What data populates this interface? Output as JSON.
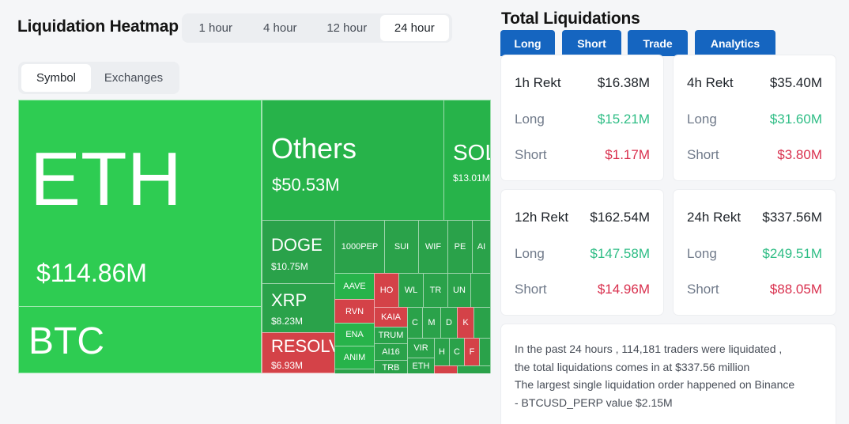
{
  "heatmap": {
    "title": "Liquidation Heatmap",
    "time_tabs": [
      "1 hour",
      "4 hour",
      "12 hour",
      "24 hour"
    ],
    "active_time_tab": "24 hour",
    "mode_tabs": [
      "Symbol",
      "Exchanges"
    ],
    "active_mode_tab": "Symbol",
    "cells": {
      "eth": {
        "name": "ETH",
        "value": "$114.86M"
      },
      "btc": {
        "name": "BTC"
      },
      "others": {
        "name": "Others",
        "value": "$50.53M"
      },
      "sol": {
        "name": "SOL",
        "value": "$13.01M"
      },
      "doge": {
        "name": "DOGE",
        "value": "$10.75M"
      },
      "xrp": {
        "name": "XRP",
        "value": "$8.23M"
      },
      "resolv": {
        "name": "RESOLV",
        "value": "$6.93M"
      },
      "pepe": "1000PEP",
      "sui": "SUI",
      "wif": "WIF",
      "pe": "PE",
      "ai": "AI",
      "aave": "AAVE",
      "ho": "HO",
      "wl": "WL",
      "tr": "TR",
      "un": "UN",
      "rvn": "RVN",
      "kaia": "KAIA",
      "ena": "ENA",
      "trump": "TRUM",
      "ai16": "AI16",
      "anim": "ANIM",
      "trb": "TRB",
      "vir": "VIR",
      "eth2": "ETH",
      "c1": "C",
      "m1": "M",
      "d1": "D",
      "k1": "K",
      "h1": "H",
      "c2": "C",
      "f1": "F"
    },
    "colors": {
      "green_main": "#2ecc52",
      "green_dark": "#27b34a",
      "red": "#d44248"
    }
  },
  "total": {
    "title": "Total Liquidations",
    "action_buttons": [
      "Long",
      "Short",
      "Trade",
      "Analytics"
    ],
    "cards": [
      {
        "label": "1h Rekt",
        "total": "$16.38M",
        "long_label": "Long",
        "long": "$15.21M",
        "short_label": "Short",
        "short": "$1.17M"
      },
      {
        "label": "4h Rekt",
        "total": "$35.40M",
        "long_label": "Long",
        "long": "$31.60M",
        "short_label": "Short",
        "short": "$3.80M"
      },
      {
        "label": "12h Rekt",
        "total": "$162.54M",
        "long_label": "Long",
        "long": "$147.58M",
        "short_label": "Short",
        "short": "$14.96M"
      },
      {
        "label": "24h Rekt",
        "total": "$337.56M",
        "long_label": "Long",
        "long": "$249.51M",
        "short_label": "Short",
        "short": "$88.05M"
      }
    ],
    "summary": [
      "In the past 24 hours , 114,181 traders were liquidated ,",
      "the total liquidations comes in at $337.56 million",
      "The largest single liquidation order happened on Binance",
      "- BTCUSD_PERP value $2.15M"
    ],
    "colors": {
      "button": "#1565c0",
      "long": "#2ebd85",
      "short": "#d9304e"
    }
  }
}
